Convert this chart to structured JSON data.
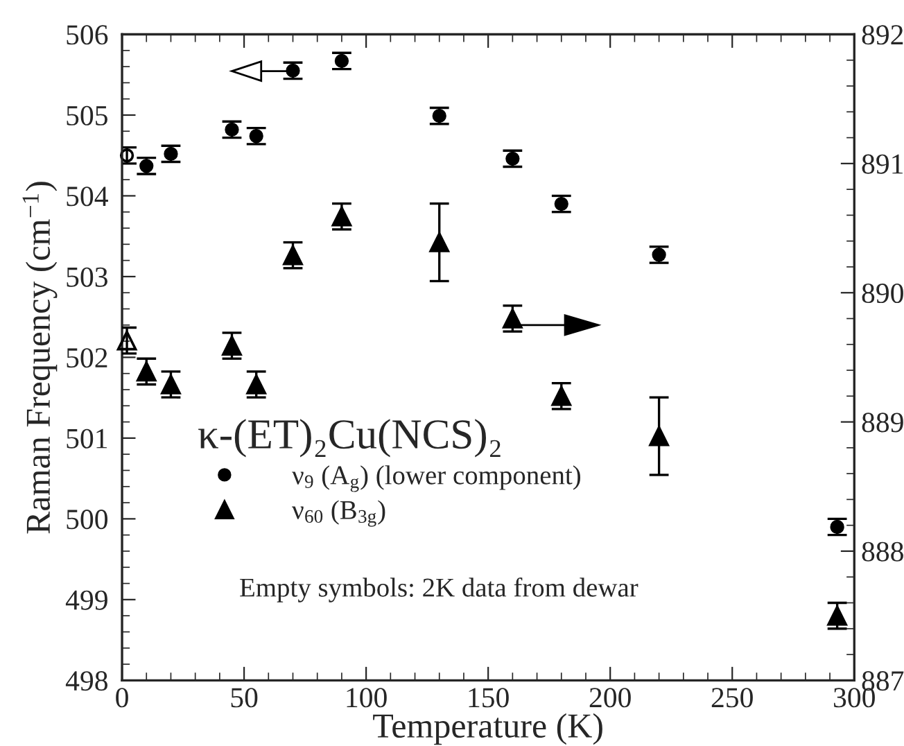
{
  "chart_data": {
    "type": "scatter",
    "xlabel": "Temperature (K)",
    "ylabel": "Raman Frequency (cm$^{−1}$)",
    "legend_title": "κ-(ET)₂Cu(NCS)₂",
    "legend": "bottom left",
    "xlim": [
      0,
      300
    ],
    "xticks": [
      0,
      50,
      100,
      150,
      200,
      250,
      300
    ],
    "ylim": [
      498,
      506
    ],
    "yticks": [
      498,
      499,
      500,
      501,
      502,
      503,
      504,
      505,
      506
    ],
    "y2lim": [
      887,
      892
    ],
    "y2ticks": [
      887,
      888,
      889,
      890,
      891,
      892
    ],
    "series": [
      {
        "name": "ν$_{9}$ (A$_{g}$) (lower component)",
        "color": "#000000",
        "marker": "circle",
        "x": [
          10,
          20,
          45,
          55,
          70,
          90,
          130,
          160,
          180,
          220,
          293
        ],
        "values": [
          504.37,
          504.52,
          504.82,
          504.74,
          505.55,
          505.67,
          504.99,
          504.46,
          503.9,
          503.27,
          499.9
        ],
        "errors": [
          0.1,
          0.1,
          0.1,
          0.1,
          0.1,
          0.1,
          0.1,
          0.1,
          0.1,
          0.1,
          0.1
        ]
      },
      {
        "name": "ν$_{60}$ (B$_{3g}$)",
        "color": "#000000",
        "marker": "triangle",
        "axis": "y2",
        "x": [
          10,
          20,
          45,
          55,
          70,
          90,
          130,
          160,
          180,
          220,
          293
        ],
        "values": [
          889.39,
          889.29,
          889.59,
          889.29,
          890.29,
          890.59,
          890.39,
          889.8,
          889.2,
          888.89,
          887.5
        ],
        "errors": [
          0.1,
          0.1,
          0.1,
          0.1,
          0.1,
          0.1,
          0.3,
          0.1,
          0.1,
          0.3,
          0.1
        ]
      },
      {
        "color": "#000000",
        "marker": "circle",
        "x": [
          2
        ],
        "values": [
          504.5
        ],
        "errors": [
          0.1
        ]
      },
      {
        "color": "#000000",
        "marker": "triangle",
        "axis": "y2",
        "x": [
          2
        ],
        "values": [
          889.63
        ],
        "errors": [
          0.1
        ]
      }
    ],
    "annotations": [
      "Empty symbols: 2K data from dewar"
    ]
  }
}
